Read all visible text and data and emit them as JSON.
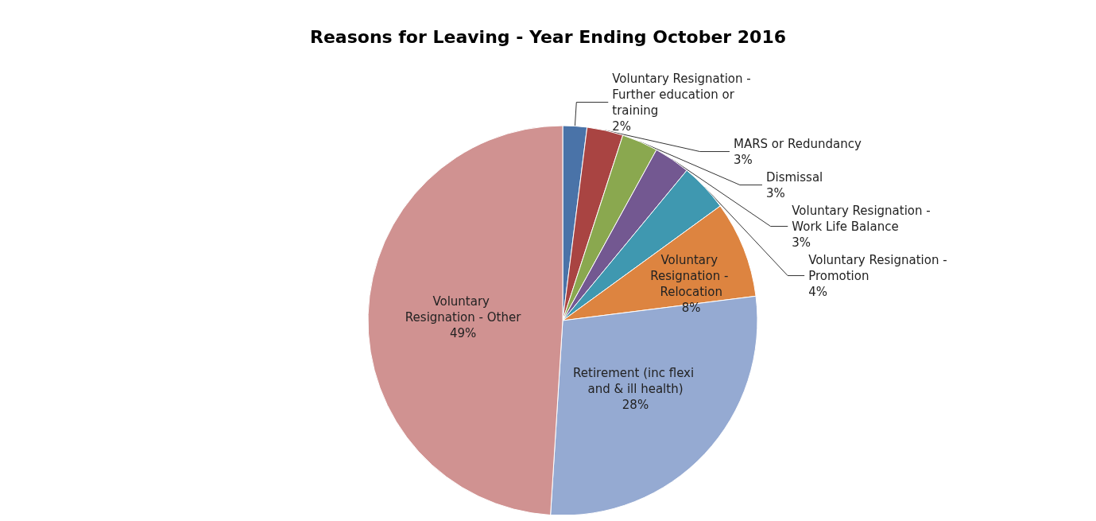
{
  "chart_data": {
    "type": "pie",
    "title": "Reasons for Leaving - Year Ending October 2016",
    "categories": [
      "Voluntary Resignation - Further education or training",
      "MARS or Redundancy",
      "Dismissal",
      "Voluntary Resignation - Work Life Balance",
      "Voluntary Resignation - Promotion",
      "Voluntary Resignation - Relocation",
      "Retirement (inc flexi and & ill health)",
      "Voluntary Resignation - Other"
    ],
    "values": [
      2,
      3,
      3,
      3,
      4,
      8,
      28,
      49
    ],
    "value_labels": [
      "2%",
      "3%",
      "3%",
      "3%",
      "4%",
      "8%",
      "28%",
      "49%"
    ],
    "colors": [
      "#4a73a8",
      "#a94442",
      "#8aa84f",
      "#735891",
      "#3f98b0",
      "#dd8440",
      "#95aad2",
      "#d09291"
    ],
    "legend": false
  }
}
